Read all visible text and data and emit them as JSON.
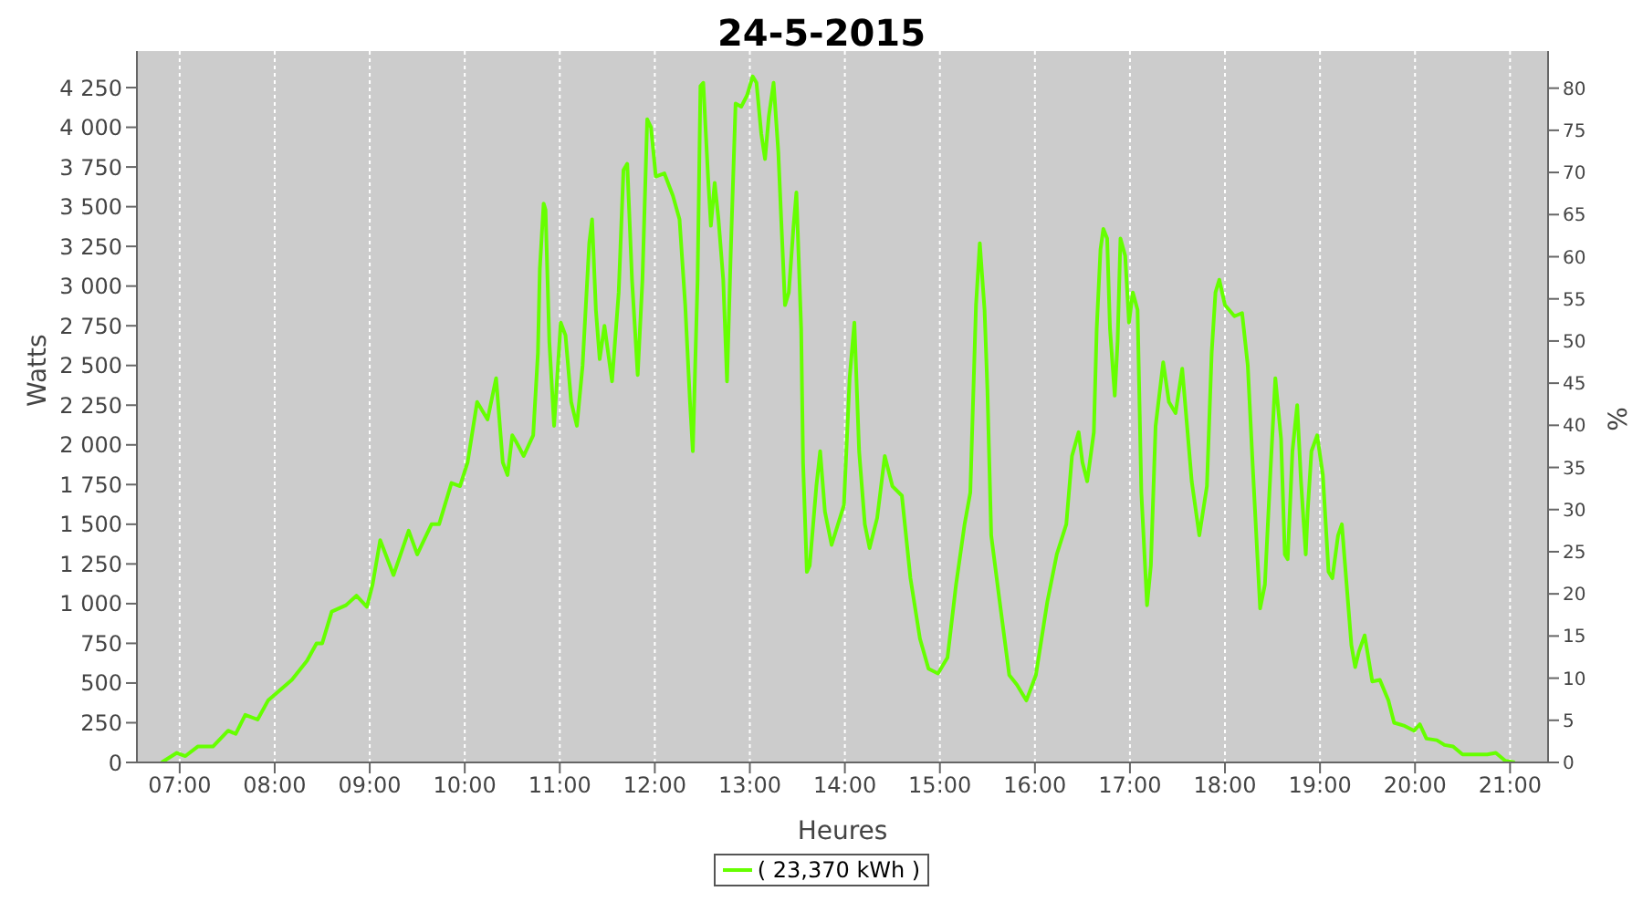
{
  "chart_data": {
    "type": "line",
    "title": "24-5-2015",
    "xlabel": "Heures",
    "ylabel": "Watts",
    "y2label": "%",
    "xlim": [
      6.55,
      21.4
    ],
    "xticks": [
      {
        "value": 7,
        "label": "07:00"
      },
      {
        "value": 8,
        "label": "08:00"
      },
      {
        "value": 9,
        "label": "09:00"
      },
      {
        "value": 10,
        "label": "10:00"
      },
      {
        "value": 11,
        "label": "11:00"
      },
      {
        "value": 12,
        "label": "12:00"
      },
      {
        "value": 13,
        "label": "13:00"
      },
      {
        "value": 14,
        "label": "14:00"
      },
      {
        "value": 15,
        "label": "15:00"
      },
      {
        "value": 16,
        "label": "16:00"
      },
      {
        "value": 17,
        "label": "17:00"
      },
      {
        "value": 18,
        "label": "18:00"
      },
      {
        "value": 19,
        "label": "19:00"
      },
      {
        "value": 20,
        "label": "20:00"
      },
      {
        "value": 21,
        "label": "21:00"
      }
    ],
    "ylim": [
      0,
      4480
    ],
    "yticks": [
      0,
      250,
      500,
      750,
      {
        "value": 1000,
        "label": "1 000"
      },
      {
        "value": 1250,
        "label": "1 250"
      },
      {
        "value": 1500,
        "label": "1 500"
      },
      {
        "value": 1750,
        "label": "1 750"
      },
      {
        "value": 2000,
        "label": "2 000"
      },
      {
        "value": 2250,
        "label": "2 250"
      },
      {
        "value": 2500,
        "label": "2 500"
      },
      {
        "value": 2750,
        "label": "2 750"
      },
      {
        "value": 3000,
        "label": "3 000"
      },
      {
        "value": 3250,
        "label": "3 250"
      },
      {
        "value": 3500,
        "label": "3 500"
      },
      {
        "value": 3750,
        "label": "3 750"
      },
      {
        "value": 4000,
        "label": "4 000"
      },
      {
        "value": 4250,
        "label": "4 250"
      }
    ],
    "y2lim": [
      0,
      84.4
    ],
    "y2ticks": [
      0,
      5,
      10,
      15,
      20,
      25,
      30,
      35,
      40,
      45,
      50,
      55,
      60,
      65,
      70,
      75,
      80
    ],
    "grid": true,
    "legend": "bottom",
    "marker": "none",
    "x": [
      6.81,
      6.97,
      7.06,
      7.19,
      7.35,
      7.51,
      7.59,
      7.69,
      7.82,
      7.93,
      8.18,
      8.34,
      8.44,
      8.5,
      8.6,
      8.75,
      8.86,
      8.97,
      9.03,
      9.11,
      9.25,
      9.41,
      9.5,
      9.65,
      9.73,
      9.86,
      9.95,
      10.03,
      10.13,
      10.24,
      10.33,
      10.4,
      10.45,
      10.5,
      10.54,
      10.62,
      10.72,
      10.77,
      10.79,
      10.83,
      10.85,
      10.89,
      10.94,
      11.01,
      11.06,
      11.12,
      11.18,
      11.24,
      11.31,
      11.34,
      11.38,
      11.42,
      11.47,
      11.55,
      11.62,
      11.67,
      11.71,
      11.76,
      11.82,
      11.87,
      11.92,
      11.96,
      12.01,
      12.1,
      12.19,
      12.26,
      12.32,
      12.37,
      12.4,
      12.45,
      12.48,
      12.51,
      12.56,
      12.59,
      12.63,
      12.67,
      12.72,
      12.76,
      12.8,
      12.85,
      12.91,
      12.97,
      13.03,
      13.07,
      13.12,
      13.16,
      13.2,
      13.25,
      13.3,
      13.33,
      13.37,
      13.41,
      13.46,
      13.49,
      13.54,
      13.56,
      13.6,
      13.63,
      13.7,
      13.74,
      13.79,
      13.86,
      13.99,
      14.05,
      14.1,
      14.15,
      14.21,
      14.26,
      14.34,
      14.42,
      14.5,
      14.6,
      14.69,
      14.79,
      14.88,
      14.98,
      15.08,
      15.17,
      15.26,
      15.32,
      15.38,
      15.42,
      15.47,
      15.5,
      15.54,
      15.63,
      15.73,
      15.81,
      15.91,
      16.01,
      16.13,
      16.23,
      16.33,
      16.39,
      16.46,
      16.5,
      16.55,
      16.62,
      16.65,
      16.69,
      16.72,
      16.76,
      16.79,
      16.84,
      16.87,
      16.9,
      16.95,
      16.99,
      17.03,
      17.08,
      17.12,
      17.18,
      17.22,
      17.27,
      17.35,
      17.41,
      17.48,
      17.55,
      17.65,
      17.73,
      17.81,
      17.86,
      17.9,
      17.94,
      18.0,
      18.1,
      18.18,
      18.24,
      18.29,
      18.34,
      18.37,
      18.42,
      18.48,
      18.53,
      18.59,
      18.63,
      18.66,
      18.71,
      18.76,
      18.8,
      18.85,
      18.87,
      18.91,
      18.97,
      19.03,
      19.09,
      19.13,
      19.19,
      19.23,
      19.28,
      19.33,
      19.37,
      19.41,
      19.47,
      19.55,
      19.63,
      19.72,
      19.78,
      19.89,
      19.99,
      20.05,
      20.12,
      20.23,
      20.31,
      20.4,
      20.5,
      20.76,
      20.85,
      20.95,
      21.05
    ],
    "series": [
      {
        "name": "( 23,370 kWh )",
        "color": "#66ff00",
        "values": [
          0,
          60,
          40,
          100,
          100,
          200,
          180,
          300,
          270,
          390,
          520,
          640,
          750,
          750,
          950,
          990,
          1050,
          980,
          1120,
          1400,
          1180,
          1460,
          1310,
          1500,
          1500,
          1760,
          1740,
          1890,
          2270,
          2160,
          2420,
          1890,
          1810,
          2060,
          2020,
          1930,
          2060,
          2580,
          3110,
          3520,
          3480,
          2650,
          2120,
          2770,
          2690,
          2270,
          2120,
          2500,
          3270,
          3420,
          2850,
          2540,
          2750,
          2400,
          2960,
          3730,
          3770,
          3040,
          2440,
          3040,
          4050,
          4000,
          3690,
          3710,
          3570,
          3420,
          2880,
          2270,
          1960,
          3040,
          4260,
          4280,
          3690,
          3380,
          3650,
          3420,
          3040,
          2400,
          3230,
          4150,
          4130,
          4200,
          4320,
          4280,
          3960,
          3800,
          4070,
          4280,
          3840,
          3420,
          2880,
          2960,
          3380,
          3590,
          2730,
          1890,
          1200,
          1240,
          1740,
          1960,
          1580,
          1370,
          1620,
          2420,
          2770,
          1960,
          1500,
          1350,
          1540,
          1930,
          1740,
          1680,
          1160,
          780,
          590,
          560,
          660,
          1120,
          1500,
          1700,
          2880,
          3270,
          2850,
          2350,
          1430,
          1010,
          550,
          490,
          390,
          550,
          1010,
          1310,
          1500,
          1930,
          2080,
          1890,
          1770,
          2080,
          2730,
          3230,
          3360,
          3300,
          2730,
          2310,
          2650,
          3300,
          3190,
          2770,
          2960,
          2850,
          1700,
          990,
          1240,
          2120,
          2520,
          2270,
          2200,
          2480,
          1770,
          1430,
          1740,
          2580,
          2960,
          3040,
          2880,
          2810,
          2830,
          2500,
          1890,
          1310,
          970,
          1120,
          1850,
          2420,
          2040,
          1310,
          1280,
          1960,
          2250,
          1770,
          1310,
          1580,
          1960,
          2060,
          1810,
          1200,
          1160,
          1430,
          1500,
          1120,
          740,
          600,
          700,
          800,
          510,
          520,
          390,
          250,
          230,
          200,
          240,
          150,
          140,
          110,
          100,
          50,
          50,
          60,
          10,
          0
        ]
      }
    ]
  }
}
